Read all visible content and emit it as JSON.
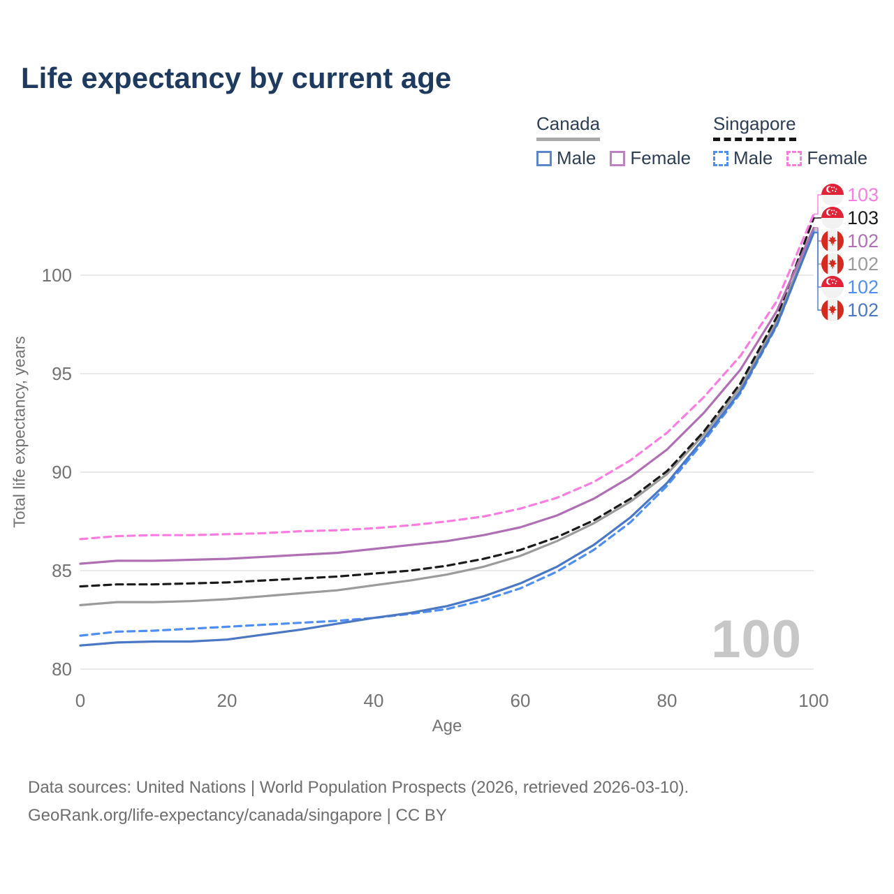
{
  "title": "Life expectancy by current age",
  "legend": {
    "groups": [
      {
        "name": "Canada",
        "underline_style": "solid",
        "underline_color": "#a9a9a9",
        "items": [
          {
            "label": "Male",
            "color": "#5b86c8",
            "dashed": false
          },
          {
            "label": "Female",
            "color": "#bd82c2",
            "dashed": false
          }
        ]
      },
      {
        "name": "Singapore",
        "underline_style": "dashed",
        "underline_color": "#161616",
        "items": [
          {
            "label": "Male",
            "color": "#4f8ff5",
            "dashed": true
          },
          {
            "label": "Female",
            "color": "#fd7ce2",
            "dashed": true
          }
        ]
      }
    ]
  },
  "chart_data": {
    "type": "line",
    "title": "Life expectancy by current age",
    "xlabel": "Age",
    "ylabel": "Total life expectancy, years",
    "x": [
      0,
      5,
      10,
      15,
      20,
      25,
      30,
      35,
      40,
      45,
      50,
      55,
      60,
      65,
      70,
      75,
      80,
      85,
      90,
      95,
      100
    ],
    "xticks": [
      0,
      20,
      40,
      60,
      80,
      100
    ],
    "yticks": [
      80,
      85,
      90,
      95,
      100
    ],
    "xlim": [
      0,
      100
    ],
    "ylim": [
      79.6,
      104.0
    ],
    "grid": "horizontal-only",
    "legend_position": "top-right",
    "series": [
      {
        "name": "Canada Total",
        "country": "Canada",
        "sex": "total",
        "color": "#9b9b9b",
        "dashed": false,
        "values": [
          83.25,
          83.4,
          83.4,
          83.45,
          83.55,
          83.7,
          83.85,
          84.0,
          84.25,
          84.5,
          84.8,
          85.2,
          85.75,
          86.5,
          87.4,
          88.5,
          89.9,
          91.9,
          94.3,
          97.7,
          102.3
        ],
        "end_label": {
          "text": "102",
          "flag": "ca",
          "row": 3
        }
      },
      {
        "name": "Singapore Total",
        "country": "Singapore",
        "sex": "total",
        "color": "#1a1a1a",
        "dashed": true,
        "values": [
          84.2,
          84.3,
          84.3,
          84.35,
          84.4,
          84.5,
          84.6,
          84.7,
          84.85,
          85.0,
          85.25,
          85.6,
          86.05,
          86.7,
          87.55,
          88.65,
          90.05,
          92.05,
          94.5,
          97.9,
          102.9
        ],
        "end_label": {
          "text": "103",
          "flag": "sg",
          "row": 1
        }
      },
      {
        "name": "Canada Female",
        "country": "Canada",
        "sex": "female",
        "color": "#b06fb5",
        "dashed": false,
        "values": [
          85.35,
          85.5,
          85.5,
          85.55,
          85.6,
          85.7,
          85.8,
          85.9,
          86.1,
          86.3,
          86.5,
          86.8,
          87.2,
          87.8,
          88.65,
          89.75,
          91.15,
          93.0,
          95.2,
          98.2,
          102.4
        ],
        "end_label": {
          "text": "102",
          "flag": "ca",
          "row": 2
        }
      },
      {
        "name": "Singapore Female",
        "country": "Singapore",
        "sex": "female",
        "color": "#fd7ce2",
        "dashed": true,
        "values": [
          86.6,
          86.75,
          86.8,
          86.8,
          86.85,
          86.9,
          87.0,
          87.05,
          87.15,
          87.3,
          87.5,
          87.75,
          88.15,
          88.7,
          89.5,
          90.6,
          92.0,
          93.8,
          95.9,
          98.7,
          103.1
        ],
        "end_label": {
          "text": "103",
          "flag": "sg",
          "row": 0
        }
      },
      {
        "name": "Singapore Male",
        "country": "Singapore",
        "sex": "male",
        "color": "#4f8ff5",
        "dashed": true,
        "values": [
          81.7,
          81.9,
          81.95,
          82.05,
          82.15,
          82.25,
          82.35,
          82.45,
          82.6,
          82.8,
          83.05,
          83.5,
          84.1,
          84.95,
          86.05,
          87.45,
          89.3,
          91.55,
          94.0,
          97.45,
          102.2
        ],
        "end_label": {
          "text": "102",
          "flag": "sg",
          "row": 4
        }
      },
      {
        "name": "Canada Male",
        "country": "Canada",
        "sex": "male",
        "color": "#4a78c5",
        "dashed": false,
        "values": [
          81.2,
          81.35,
          81.4,
          81.4,
          81.5,
          81.75,
          82.0,
          82.3,
          82.6,
          82.85,
          83.2,
          83.7,
          84.35,
          85.2,
          86.3,
          87.7,
          89.45,
          91.7,
          94.1,
          97.5,
          102.15
        ],
        "end_label": {
          "text": "102",
          "flag": "ca",
          "row": 5
        }
      }
    ]
  },
  "axis": {
    "ylabel": "Total life expectancy, years",
    "xlabel": "Age"
  },
  "watermark": "100",
  "footer": {
    "line1": "Data sources: United Nations | World Population Prospects (2026, retrieved 2026-03-10).",
    "line2": "GeoRank.org/life-expectancy/canada/singapore | CC BY"
  },
  "colors": {
    "title": "#1e3a5f",
    "legend_text": "#2e3e55",
    "axis_text": "#737373",
    "grid": "#e9e9e9",
    "watermark": "#c7c7c7",
    "footer_text": "#6e6e6e",
    "sg_flag_red": "#e12237",
    "ca_flag_red": "#d52b1e",
    "flag_white": "#f2f2f2"
  }
}
